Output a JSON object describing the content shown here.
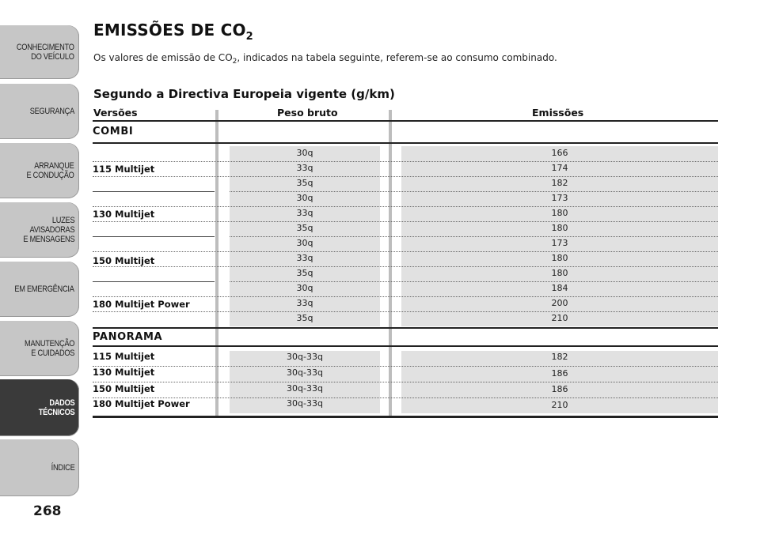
{
  "sidebar": {
    "tabs": [
      {
        "label": "CONHECIMENTO\nDO VEÍCULO",
        "active": false
      },
      {
        "label": "SEGURANÇA",
        "active": false
      },
      {
        "label": "ARRANQUE\nE CONDUÇÃO",
        "active": false
      },
      {
        "label": "LUZES\nAVISADORAS\nE MENSAGENS",
        "active": false
      },
      {
        "label": "EM EMERGÊNCIA",
        "active": false
      },
      {
        "label": "MANUTENÇÃO\nE CUIDADOS",
        "active": false
      },
      {
        "label": "DADOS\nTÉCNICOS",
        "active": true
      },
      {
        "label": "ÍNDICE",
        "active": false
      }
    ],
    "page_number": "268"
  },
  "heading": {
    "title_main": "EMISSÕES DE CO",
    "title_sub": "2",
    "intro_before": "Os valores de emissão de CO",
    "intro_sub": "2",
    "intro_after": ", indicados na tabela seguinte, referem-se ao consumo combinado.",
    "table_caption": "Segundo a Directiva Europeia vigente (g/km)"
  },
  "table": {
    "headers": {
      "versions": "Versões",
      "weight": "Peso bruto",
      "emissions": "Emissões"
    },
    "combi": {
      "label": "COMBI",
      "groups": [
        {
          "model": "115 Multijet",
          "rows": [
            {
              "weight": "30q",
              "emission": "166"
            },
            {
              "weight": "33q",
              "emission": "174"
            },
            {
              "weight": "35q",
              "emission": "182"
            }
          ]
        },
        {
          "model": "130 Multijet",
          "rows": [
            {
              "weight": "30q",
              "emission": "173"
            },
            {
              "weight": "33q",
              "emission": "180"
            },
            {
              "weight": "35q",
              "emission": "180"
            }
          ]
        },
        {
          "model": "150 Multijet",
          "rows": [
            {
              "weight": "30q",
              "emission": "173"
            },
            {
              "weight": "33q",
              "emission": "180"
            },
            {
              "weight": "35q",
              "emission": "180"
            }
          ]
        },
        {
          "model": "180 Multijet Power",
          "rows": [
            {
              "weight": "30q",
              "emission": "184"
            },
            {
              "weight": "33q",
              "emission": "200"
            },
            {
              "weight": "35q",
              "emission": "210"
            }
          ]
        }
      ]
    },
    "panorama": {
      "label": "PANORAMA",
      "rows": [
        {
          "model": "115 Multijet",
          "weight": "30q-33q",
          "emission": "182"
        },
        {
          "model": "130 Multijet",
          "weight": "30q-33q",
          "emission": "186"
        },
        {
          "model": "150 Multijet",
          "weight": "30q-33q",
          "emission": "186"
        },
        {
          "model": "180 Multijet Power",
          "weight": "30q-33q",
          "emission": "210"
        }
      ]
    }
  }
}
